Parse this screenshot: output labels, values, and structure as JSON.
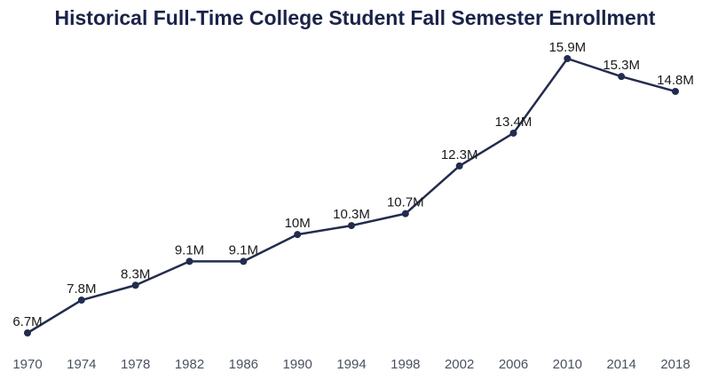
{
  "chart_data": {
    "type": "line",
    "title": "Historical Full-Time College Student Fall Semester Enrollment",
    "categories": [
      "1970",
      "1974",
      "1978",
      "1982",
      "1986",
      "1990",
      "1994",
      "1998",
      "2002",
      "2006",
      "2010",
      "2014",
      "2018"
    ],
    "values": [
      6.7,
      7.8,
      8.3,
      9.1,
      9.1,
      10,
      10.3,
      10.7,
      12.3,
      13.4,
      15.9,
      15.3,
      14.8
    ],
    "labels": [
      "6.7M",
      "7.8M",
      "8.3M",
      "9.1M",
      "9.1M",
      "10M",
      "10.3M",
      "10.7M",
      "12.3M",
      "13.4M",
      "15.9M",
      "15.3M",
      "14.8M"
    ],
    "xlabel": "",
    "ylabel": "",
    "ylim": [
      6.7,
      15.9
    ],
    "grid": false,
    "legend": "none",
    "axes_visible": false,
    "colors": {
      "line": "#232c4e",
      "point": "#232c4e",
      "title": "#1a2348",
      "data_label": "#1a1a1a",
      "tick_label": "#4a5260",
      "background": "#ffffff"
    }
  }
}
